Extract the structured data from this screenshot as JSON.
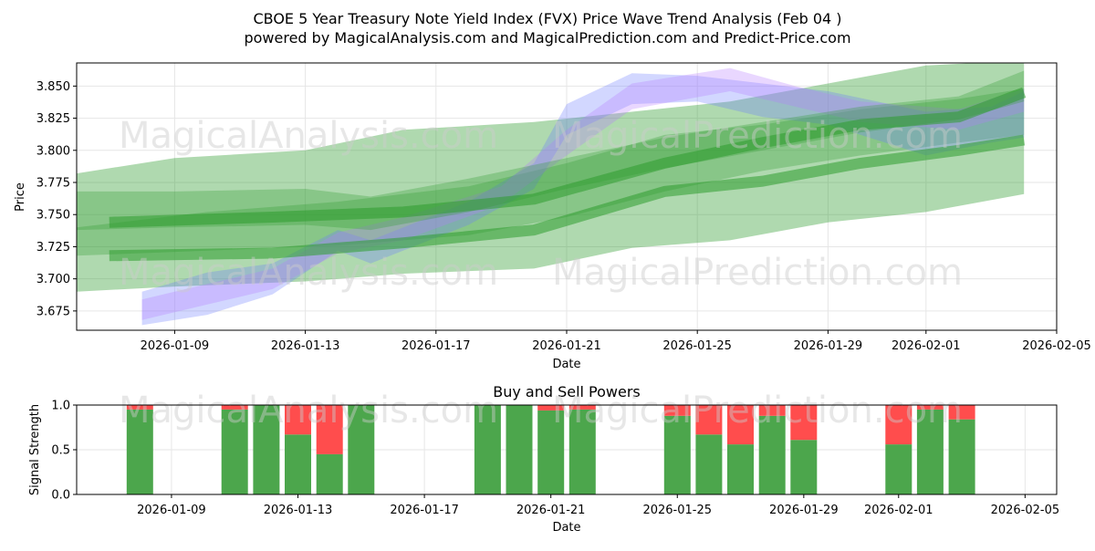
{
  "colors": {
    "buy": "#4ca64c",
    "sell": "#ff4d4d",
    "band_green": "#2e9c2e",
    "band_blue": "#6a7cff",
    "band_purple": "#b57cff",
    "band_orange": "#f0b070"
  },
  "watermarks": {
    "left": "MagicalAnalysis.com",
    "right": "MagicalPrediction.com"
  },
  "chart_data": [
    {
      "type": "area",
      "title": "CBOE 5 Year Treasury Note Yield Index (FVX) Price Wave Trend Analysis (Feb 04 )",
      "subtitle": "powered by MagicalAnalysis.com and MagicalPrediction.com and Predict-Price.com",
      "xlabel": "Date",
      "ylabel": "Price",
      "xlim": [
        "2026-01-06",
        "2026-02-05"
      ],
      "ylim": [
        3.66,
        3.868
      ],
      "x_ticks": [
        "2026-01-09",
        "2026-01-13",
        "2026-01-17",
        "2026-01-21",
        "2026-01-25",
        "2026-01-29",
        "2026-02-01",
        "2026-02-05"
      ],
      "y_ticks": [
        "3.675",
        "3.700",
        "3.725",
        "3.750",
        "3.775",
        "3.800",
        "3.825",
        "3.850"
      ],
      "grid": true,
      "series": [
        {
          "name": "wide-green",
          "color": "green",
          "x": [
            "2026-01-06",
            "2026-01-09",
            "2026-01-13",
            "2026-01-16",
            "2026-01-20",
            "2026-01-23",
            "2026-01-26",
            "2026-01-29",
            "2026-02-01",
            "2026-02-04"
          ],
          "upper": [
            3.782,
            3.794,
            3.8,
            3.816,
            3.822,
            3.83,
            3.838,
            3.852,
            3.866,
            3.87
          ],
          "lower": [
            3.69,
            3.694,
            3.698,
            3.704,
            3.708,
            3.724,
            3.73,
            3.744,
            3.752,
            3.766
          ]
        },
        {
          "name": "green-2",
          "color": "green",
          "x": [
            "2026-01-06",
            "2026-01-10",
            "2026-01-14",
            "2026-01-18",
            "2026-01-21",
            "2026-01-24",
            "2026-01-27",
            "2026-01-30",
            "2026-02-02",
            "2026-02-04"
          ],
          "upper": [
            3.74,
            3.752,
            3.76,
            3.772,
            3.79,
            3.812,
            3.82,
            3.832,
            3.84,
            3.848
          ],
          "lower": [
            3.718,
            3.722,
            3.726,
            3.734,
            3.748,
            3.768,
            3.784,
            3.796,
            3.806,
            3.812
          ]
        },
        {
          "name": "blue-1",
          "color": "blue",
          "x": [
            "2026-01-08",
            "2026-01-10",
            "2026-01-12",
            "2026-01-14",
            "2026-01-15",
            "2026-01-18",
            "2026-01-20",
            "2026-01-21",
            "2026-01-23",
            "2026-01-25",
            "2026-01-27",
            "2026-01-29",
            "2026-02-01",
            "2026-02-03",
            "2026-02-04"
          ],
          "upper": [
            3.69,
            3.705,
            3.712,
            3.738,
            3.73,
            3.76,
            3.79,
            3.836,
            3.86,
            3.858,
            3.852,
            3.846,
            3.83,
            3.834,
            3.846
          ],
          "lower": [
            3.664,
            3.672,
            3.688,
            3.722,
            3.712,
            3.742,
            3.77,
            3.812,
            3.836,
            3.838,
            3.826,
            3.82,
            3.796,
            3.806,
            3.81
          ]
        },
        {
          "name": "purple-1",
          "color": "purple",
          "x": [
            "2026-01-08",
            "2026-01-10",
            "2026-01-12",
            "2026-01-14",
            "2026-01-16",
            "2026-01-19",
            "2026-01-21",
            "2026-01-23",
            "2026-01-26",
            "2026-01-28",
            "2026-01-30",
            "2026-02-02",
            "2026-02-04"
          ],
          "upper": [
            3.684,
            3.696,
            3.708,
            3.736,
            3.748,
            3.772,
            3.816,
            3.852,
            3.864,
            3.85,
            3.838,
            3.832,
            3.848
          ],
          "lower": [
            3.668,
            3.68,
            3.692,
            3.72,
            3.73,
            3.758,
            3.796,
            3.832,
            3.846,
            3.834,
            3.822,
            3.816,
            3.83
          ]
        },
        {
          "name": "green-3",
          "color": "green",
          "x": [
            "2026-01-06",
            "2026-01-09",
            "2026-01-13",
            "2026-01-15",
            "2026-01-18",
            "2026-01-21",
            "2026-01-24",
            "2026-01-27",
            "2026-01-30",
            "2026-02-02",
            "2026-02-04"
          ],
          "upper": [
            3.768,
            3.768,
            3.77,
            3.764,
            3.778,
            3.794,
            3.81,
            3.822,
            3.834,
            3.842,
            3.862
          ],
          "lower": [
            3.738,
            3.74,
            3.742,
            3.738,
            3.752,
            3.77,
            3.786,
            3.8,
            3.814,
            3.824,
            3.838
          ]
        }
      ],
      "trend_lines": [
        {
          "name": "dark-green-trend",
          "color": "green",
          "x": [
            "2026-01-07",
            "2026-01-12",
            "2026-01-16",
            "2026-01-20",
            "2026-01-24",
            "2026-01-27",
            "2026-01-30",
            "2026-02-02",
            "2026-02-04"
          ],
          "y": [
            3.744,
            3.748,
            3.752,
            3.762,
            3.79,
            3.806,
            3.82,
            3.826,
            3.845
          ]
        },
        {
          "name": "lower-green-trend",
          "color": "green",
          "x": [
            "2026-01-07",
            "2026-01-12",
            "2026-01-16",
            "2026-01-20",
            "2026-01-24",
            "2026-01-27",
            "2026-01-30",
            "2026-02-02",
            "2026-02-04"
          ],
          "y": [
            3.718,
            3.72,
            3.728,
            3.738,
            3.768,
            3.776,
            3.79,
            3.8,
            3.808
          ]
        }
      ]
    },
    {
      "type": "bar",
      "title": "Buy and Sell Powers",
      "xlabel": "Date",
      "ylabel": "Signal Strength",
      "ylim": [
        0,
        1.0
      ],
      "y_ticks": [
        "0.0",
        "0.5",
        "1.0"
      ],
      "x_ticks": [
        "2026-01-09",
        "2026-01-13",
        "2026-01-17",
        "2026-01-21",
        "2026-01-25",
        "2026-01-29",
        "2026-02-01",
        "2026-02-05"
      ],
      "x": [
        "2026-01-08",
        "2026-01-11",
        "2026-01-12",
        "2026-01-13",
        "2026-01-14",
        "2026-01-15",
        "2026-01-19",
        "2026-01-20",
        "2026-01-21",
        "2026-01-22",
        "2026-01-25",
        "2026-01-26",
        "2026-01-27",
        "2026-01-28",
        "2026-01-29",
        "2026-02-01",
        "2026-02-02",
        "2026-02-03"
      ],
      "series": [
        {
          "name": "Buy",
          "values": [
            0.95,
            0.95,
            1.0,
            0.67,
            0.45,
            1.0,
            1.0,
            1.0,
            0.94,
            0.95,
            0.88,
            0.67,
            0.56,
            0.88,
            0.61,
            0.56,
            0.95,
            0.84
          ]
        },
        {
          "name": "Sell",
          "values": [
            0.05,
            0.05,
            0.0,
            0.33,
            0.55,
            0.0,
            0.0,
            0.0,
            0.06,
            0.05,
            0.12,
            0.33,
            0.44,
            0.12,
            0.39,
            0.44,
            0.05,
            0.16
          ]
        }
      ]
    }
  ]
}
